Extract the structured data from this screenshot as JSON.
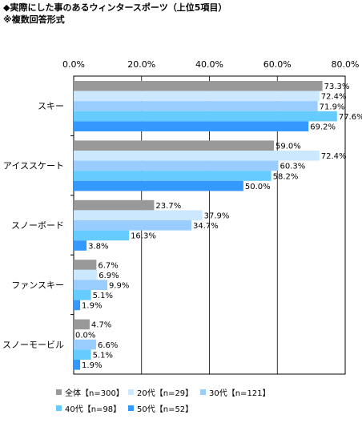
{
  "header": {
    "title": "◆実際にした事のあるウィンタースポーツ（上位5項目）",
    "subtitle": "※複数回答形式"
  },
  "chart_data": {
    "type": "bar",
    "orientation": "horizontal",
    "title": "◆実際にした事のあるウィンタースポーツ（上位5項目）",
    "subtitle": "※複数回答形式",
    "categories": [
      "スキー",
      "アイススケート",
      "スノーボード",
      "ファンスキー",
      "スノーモービル"
    ],
    "series": [
      {
        "name": "全体【n=300】",
        "color": "#999999",
        "values": [
          73.3,
          59.0,
          23.7,
          6.7,
          4.7
        ]
      },
      {
        "name": "20代【n=29】",
        "color": "#cce8ff",
        "values": [
          72.4,
          72.4,
          37.9,
          6.9,
          0.0
        ]
      },
      {
        "name": "30代【n=121】",
        "color": "#99ccff",
        "values": [
          71.9,
          60.3,
          34.7,
          9.9,
          6.6
        ]
      },
      {
        "name": "40代【n=98】",
        "color": "#66ccff",
        "values": [
          77.6,
          58.2,
          16.3,
          5.1,
          5.1
        ]
      },
      {
        "name": "50代【n=52】",
        "color": "#3399ff",
        "values": [
          69.2,
          50.0,
          3.8,
          1.9,
          1.9
        ]
      }
    ],
    "value_labels": [
      [
        "73.3%",
        "59.0%",
        "23.7%",
        "6.7%",
        "4.7%"
      ],
      [
        "72.4%",
        "72.4%",
        "37.9%",
        "6.9%",
        "0.0%"
      ],
      [
        "71.9%",
        "60.3%",
        "34.7%",
        "9.9%",
        "6.6%"
      ],
      [
        "77.6%",
        "58.2%",
        "16.3%",
        "5.1%",
        "5.1%"
      ],
      [
        "69.2%",
        "50.0%",
        "3.8%",
        "1.9%",
        "1.9%"
      ]
    ],
    "x_ticks": [
      "0.0%",
      "20.0%",
      "40.0%",
      "60.0%",
      "80.0%"
    ],
    "xlim": [
      0,
      80
    ],
    "grid": true,
    "legend_position": "bottom"
  }
}
